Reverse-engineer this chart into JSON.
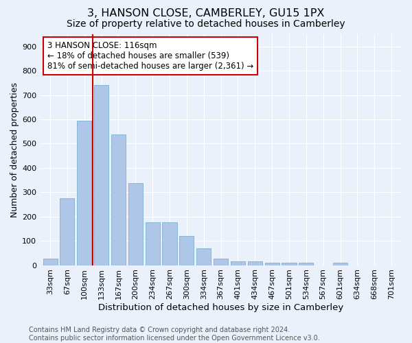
{
  "title1": "3, HANSON CLOSE, CAMBERLEY, GU15 1PX",
  "title2": "Size of property relative to detached houses in Camberley",
  "xlabel": "Distribution of detached houses by size in Camberley",
  "ylabel": "Number of detached properties",
  "bar_labels": [
    "33sqm",
    "67sqm",
    "100sqm",
    "133sqm",
    "167sqm",
    "200sqm",
    "234sqm",
    "267sqm",
    "300sqm",
    "334sqm",
    "367sqm",
    "401sqm",
    "434sqm",
    "467sqm",
    "501sqm",
    "534sqm",
    "567sqm",
    "601sqm",
    "634sqm",
    "668sqm",
    "701sqm"
  ],
  "bar_values": [
    27,
    275,
    595,
    740,
    537,
    337,
    176,
    176,
    120,
    70,
    26,
    15,
    15,
    10,
    9,
    9,
    0,
    9,
    0,
    0,
    0
  ],
  "bar_color": "#aec6e8",
  "bar_edge_color": "#7aafd4",
  "bg_color": "#eaf1fb",
  "grid_color": "#ffffff",
  "vline_x_bar_index": 2,
  "vline_x_offset": 0.48,
  "vline_color": "#cc0000",
  "annotation_text": "3 HANSON CLOSE: 116sqm\n← 18% of detached houses are smaller (539)\n81% of semi-detached houses are larger (2,361) →",
  "annotation_box_color": "#ffffff",
  "annotation_box_edge": "#cc0000",
  "ylim": [
    0,
    950
  ],
  "yticks": [
    0,
    100,
    200,
    300,
    400,
    500,
    600,
    700,
    800,
    900
  ],
  "footer_text": "Contains HM Land Registry data © Crown copyright and database right 2024.\nContains public sector information licensed under the Open Government Licence v3.0.",
  "title1_fontsize": 11.5,
  "title2_fontsize": 10,
  "xlabel_fontsize": 9.5,
  "ylabel_fontsize": 9,
  "tick_fontsize": 8,
  "annotation_fontsize": 8.5,
  "footer_fontsize": 7
}
